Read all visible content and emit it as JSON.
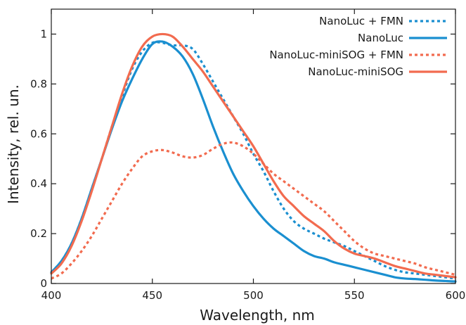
{
  "chart_data": {
    "type": "line",
    "title": "",
    "xlabel": "Wavelength, nm",
    "ylabel": "Intensity, rel. un.",
    "xlim": [
      400,
      600
    ],
    "ylim": [
      0,
      1.1
    ],
    "xticks": [
      400,
      450,
      500,
      550,
      600
    ],
    "xtick_labels": [
      "400",
      "450",
      "500",
      "550",
      "600"
    ],
    "yticks": [
      0,
      0.2,
      0.4,
      0.6,
      0.8,
      1
    ],
    "ytick_labels": [
      "0",
      "0.2",
      "0.4",
      "0.6",
      "0.8",
      "1"
    ],
    "grid": false,
    "legend_position": "top-right",
    "series": [
      {
        "name": "NanoLuc + FMN",
        "color": "#1a8fd0",
        "dash": "dotted",
        "x": [
          400,
          405,
          410,
          415,
          420,
          425,
          430,
          435,
          440,
          445,
          450,
          455,
          460,
          465,
          470,
          475,
          480,
          485,
          490,
          495,
          500,
          505,
          510,
          515,
          520,
          525,
          530,
          535,
          540,
          545,
          550,
          555,
          560,
          565,
          570,
          575,
          580,
          585,
          590,
          595,
          600
        ],
        "y": [
          0.045,
          0.09,
          0.16,
          0.26,
          0.38,
          0.5,
          0.63,
          0.75,
          0.86,
          0.93,
          0.965,
          0.965,
          0.955,
          0.955,
          0.94,
          0.88,
          0.81,
          0.74,
          0.67,
          0.6,
          0.52,
          0.45,
          0.37,
          0.3,
          0.25,
          0.22,
          0.2,
          0.18,
          0.165,
          0.15,
          0.13,
          0.11,
          0.09,
          0.07,
          0.055,
          0.045,
          0.04,
          0.035,
          0.03,
          0.025,
          0.02
        ]
      },
      {
        "name": "NanoLuc",
        "color": "#1a8fd0",
        "dash": "solid",
        "x": [
          400,
          405,
          410,
          415,
          420,
          425,
          430,
          435,
          440,
          445,
          450,
          455,
          460,
          465,
          470,
          475,
          480,
          485,
          490,
          495,
          500,
          505,
          510,
          515,
          520,
          525,
          530,
          535,
          540,
          545,
          550,
          555,
          560,
          565,
          570,
          575,
          580,
          585,
          590,
          595,
          600
        ],
        "y": [
          0.045,
          0.09,
          0.16,
          0.26,
          0.38,
          0.5,
          0.62,
          0.73,
          0.82,
          0.9,
          0.96,
          0.97,
          0.95,
          0.91,
          0.84,
          0.74,
          0.63,
          0.53,
          0.44,
          0.37,
          0.31,
          0.26,
          0.22,
          0.19,
          0.16,
          0.13,
          0.11,
          0.1,
          0.085,
          0.075,
          0.065,
          0.055,
          0.045,
          0.035,
          0.025,
          0.02,
          0.018,
          0.015,
          0.012,
          0.01,
          0.008
        ]
      },
      {
        "name": "NanoLuc-miniSOG + FMN",
        "color": "#f26b4f",
        "dash": "dotted",
        "x": [
          400,
          405,
          410,
          415,
          420,
          425,
          430,
          435,
          440,
          445,
          450,
          455,
          460,
          465,
          470,
          475,
          480,
          485,
          490,
          495,
          500,
          505,
          510,
          515,
          520,
          525,
          530,
          535,
          540,
          545,
          550,
          555,
          560,
          565,
          570,
          575,
          580,
          585,
          590,
          595,
          600
        ],
        "y": [
          0.02,
          0.04,
          0.08,
          0.13,
          0.19,
          0.26,
          0.33,
          0.4,
          0.46,
          0.51,
          0.53,
          0.535,
          0.525,
          0.51,
          0.505,
          0.515,
          0.54,
          0.56,
          0.565,
          0.55,
          0.52,
          0.48,
          0.44,
          0.41,
          0.38,
          0.35,
          0.32,
          0.29,
          0.25,
          0.21,
          0.17,
          0.14,
          0.12,
          0.11,
          0.1,
          0.09,
          0.08,
          0.065,
          0.055,
          0.045,
          0.035
        ]
      },
      {
        "name": "NanoLuc-miniSOG",
        "color": "#f26b4f",
        "dash": "solid",
        "x": [
          400,
          405,
          410,
          415,
          420,
          425,
          430,
          435,
          440,
          445,
          450,
          455,
          460,
          465,
          470,
          475,
          480,
          485,
          490,
          495,
          500,
          505,
          510,
          515,
          520,
          525,
          530,
          535,
          540,
          545,
          550,
          555,
          560,
          565,
          570,
          575,
          580,
          585,
          590,
          595,
          600
        ],
        "y": [
          0.04,
          0.08,
          0.15,
          0.25,
          0.37,
          0.5,
          0.63,
          0.76,
          0.87,
          0.95,
          0.99,
          1.0,
          0.99,
          0.95,
          0.9,
          0.85,
          0.79,
          0.73,
          0.67,
          0.61,
          0.55,
          0.48,
          0.41,
          0.35,
          0.31,
          0.27,
          0.24,
          0.21,
          0.17,
          0.14,
          0.12,
          0.11,
          0.1,
          0.085,
          0.07,
          0.06,
          0.05,
          0.04,
          0.035,
          0.03,
          0.025
        ]
      }
    ]
  }
}
